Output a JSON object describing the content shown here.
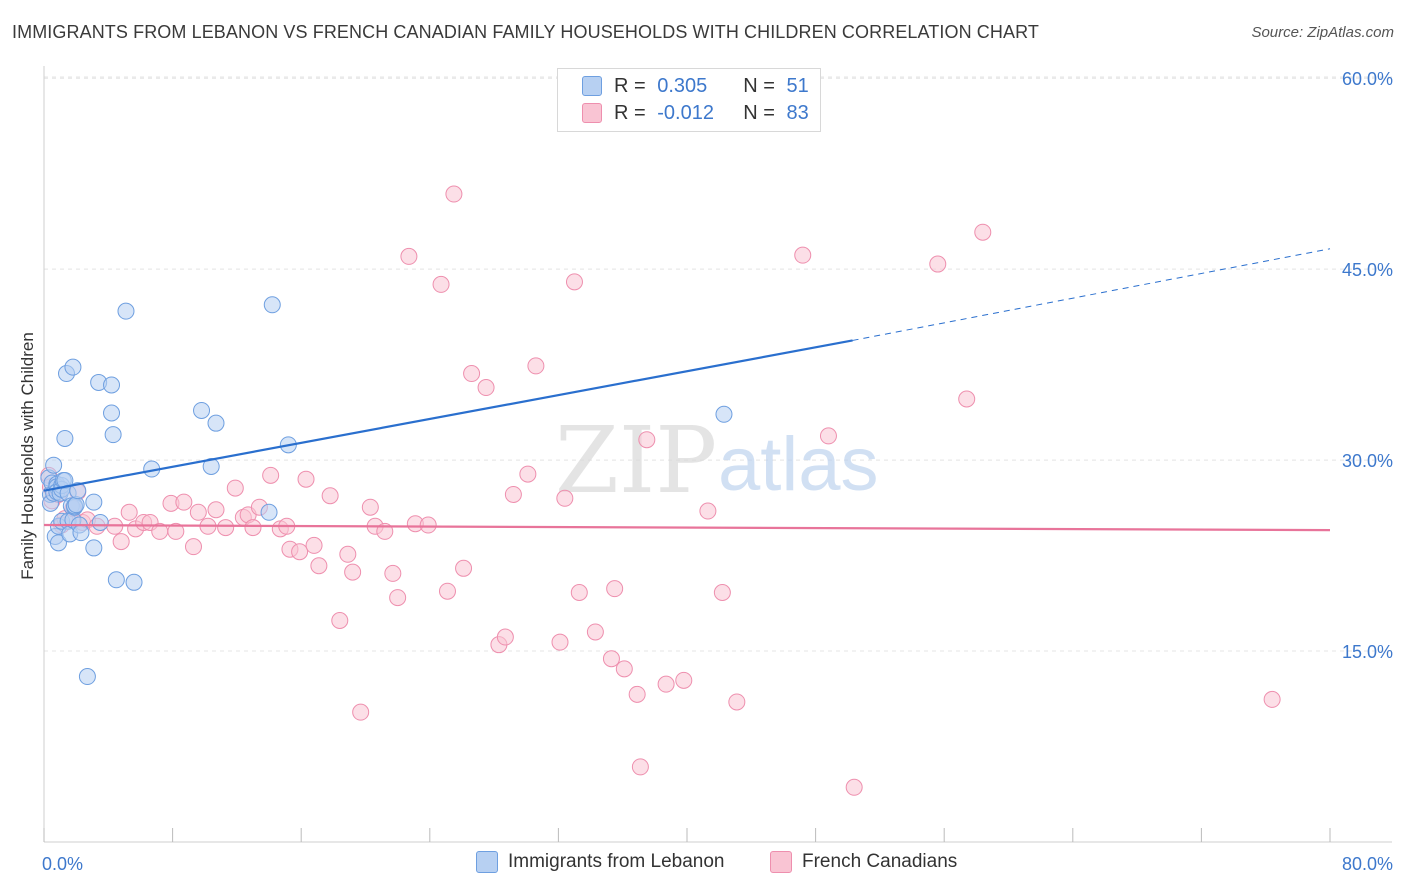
{
  "title": "IMMIGRANTS FROM LEBANON VS FRENCH CANADIAN FAMILY HOUSEHOLDS WITH CHILDREN CORRELATION CHART",
  "source": "Source: ZipAtlas.com",
  "watermark": {
    "zip": "ZIP",
    "atlas": "atlas"
  },
  "legend_top": {
    "rows": [
      {
        "r_label": "R =",
        "r_value": "0.305",
        "n_label": "N =",
        "n_value": "51"
      },
      {
        "r_label": "R =",
        "r_value": "-0.012",
        "n_label": "N =",
        "n_value": "83"
      }
    ]
  },
  "colors": {
    "blue_fill": "#b7d0f2",
    "blue_stroke": "#6e9fe0",
    "blue_line": "#2a6fce",
    "pink_fill": "#f9c4d3",
    "pink_stroke": "#ee8fae",
    "pink_line": "#e8749a",
    "tick_label": "#3d78cc",
    "grid": "#e4e4e4"
  },
  "chart_data": {
    "type": "scatter",
    "title": "IMMIGRANTS FROM LEBANON VS FRENCH CANADIAN FAMILY HOUSEHOLDS WITH CHILDREN CORRELATION CHART",
    "xlabel": "",
    "ylabel": "Family Households with Children",
    "xlim": [
      0,
      80
    ],
    "ylim": [
      0,
      62
    ],
    "x_tick_labels": [
      "0.0%",
      "80.0%"
    ],
    "y_ticks": [
      15,
      30,
      45,
      60
    ],
    "y_tick_labels": [
      "15.0%",
      "30.0%",
      "45.0%",
      "60.0%"
    ],
    "grid": true,
    "legend_position": "bottom",
    "series": [
      {
        "name": "Immigrants from Lebanon",
        "color": "#6e9fe0",
        "trend": {
          "x": [
            0,
            50.3
          ],
          "y": [
            27.6,
            39.4
          ],
          "dashed_to": [
            80,
            46.6
          ]
        },
        "points": [
          [
            0.3,
            28.6
          ],
          [
            0.4,
            27.3
          ],
          [
            0.4,
            26.6
          ],
          [
            0.5,
            28.2
          ],
          [
            0.6,
            27.4
          ],
          [
            0.6,
            29.6
          ],
          [
            0.7,
            24.0
          ],
          [
            0.8,
            28.1
          ],
          [
            0.8,
            27.9
          ],
          [
            0.8,
            27.5
          ],
          [
            0.9,
            23.5
          ],
          [
            0.9,
            24.8
          ],
          [
            1.0,
            27.4
          ],
          [
            1.1,
            28.0
          ],
          [
            1.1,
            27.7
          ],
          [
            1.1,
            25.2
          ],
          [
            1.2,
            28.4
          ],
          [
            1.3,
            31.7
          ],
          [
            1.3,
            28.4
          ],
          [
            1.4,
            36.8
          ],
          [
            1.5,
            25.2
          ],
          [
            1.5,
            27.4
          ],
          [
            1.6,
            24.2
          ],
          [
            1.7,
            26.4
          ],
          [
            1.8,
            37.3
          ],
          [
            1.8,
            25.3
          ],
          [
            1.9,
            26.3
          ],
          [
            1.9,
            26.4
          ],
          [
            2.0,
            26.5
          ],
          [
            2.1,
            27.6
          ],
          [
            2.2,
            24.9
          ],
          [
            2.3,
            24.3
          ],
          [
            2.7,
            13.0
          ],
          [
            3.1,
            23.1
          ],
          [
            3.1,
            26.7
          ],
          [
            3.4,
            36.1
          ],
          [
            3.5,
            25.1
          ],
          [
            4.2,
            35.9
          ],
          [
            4.2,
            33.7
          ],
          [
            4.3,
            32.0
          ],
          [
            4.5,
            20.6
          ],
          [
            5.6,
            20.4
          ],
          [
            5.1,
            41.7
          ],
          [
            6.7,
            29.3
          ],
          [
            9.8,
            33.9
          ],
          [
            10.4,
            29.5
          ],
          [
            10.7,
            32.9
          ],
          [
            14.0,
            25.9
          ],
          [
            14.2,
            42.2
          ],
          [
            15.2,
            31.2
          ],
          [
            42.3,
            33.6
          ]
        ]
      },
      {
        "name": "French Canadians",
        "color": "#ee8fae",
        "trend": {
          "x": [
            0,
            80
          ],
          "y": [
            24.9,
            24.5
          ]
        },
        "points": [
          [
            0.3,
            28.8
          ],
          [
            0.4,
            27.9
          ],
          [
            0.5,
            26.8
          ],
          [
            0.9,
            27.3
          ],
          [
            1.1,
            24.9
          ],
          [
            1.3,
            25.4
          ],
          [
            1.8,
            26.2
          ],
          [
            2.1,
            27.5
          ],
          [
            2.4,
            25.1
          ],
          [
            2.7,
            25.3
          ],
          [
            3.3,
            24.8
          ],
          [
            4.4,
            24.8
          ],
          [
            4.8,
            23.6
          ],
          [
            5.3,
            25.9
          ],
          [
            5.7,
            24.6
          ],
          [
            6.2,
            25.1
          ],
          [
            6.6,
            25.1
          ],
          [
            7.2,
            24.4
          ],
          [
            7.9,
            26.6
          ],
          [
            8.2,
            24.4
          ],
          [
            8.7,
            26.7
          ],
          [
            9.3,
            23.2
          ],
          [
            9.6,
            25.9
          ],
          [
            10.2,
            24.8
          ],
          [
            10.7,
            26.1
          ],
          [
            11.3,
            24.7
          ],
          [
            11.9,
            27.8
          ],
          [
            12.4,
            25.5
          ],
          [
            12.7,
            25.7
          ],
          [
            13.0,
            24.7
          ],
          [
            13.4,
            26.3
          ],
          [
            14.1,
            28.8
          ],
          [
            14.7,
            24.6
          ],
          [
            15.1,
            24.8
          ],
          [
            15.3,
            23.0
          ],
          [
            15.9,
            22.8
          ],
          [
            16.3,
            28.5
          ],
          [
            16.8,
            23.3
          ],
          [
            17.1,
            21.7
          ],
          [
            17.8,
            27.2
          ],
          [
            18.4,
            17.4
          ],
          [
            18.9,
            22.6
          ],
          [
            19.2,
            21.2
          ],
          [
            19.7,
            10.2
          ],
          [
            20.3,
            26.3
          ],
          [
            20.6,
            24.8
          ],
          [
            21.2,
            24.4
          ],
          [
            21.7,
            21.1
          ],
          [
            22.0,
            19.2
          ],
          [
            22.7,
            46.0
          ],
          [
            23.1,
            25.0
          ],
          [
            23.9,
            24.9
          ],
          [
            24.7,
            43.8
          ],
          [
            25.1,
            19.7
          ],
          [
            25.5,
            50.9
          ],
          [
            26.1,
            21.5
          ],
          [
            26.6,
            36.8
          ],
          [
            27.5,
            35.7
          ],
          [
            28.3,
            15.5
          ],
          [
            28.7,
            16.1
          ],
          [
            29.2,
            27.3
          ],
          [
            30.1,
            28.9
          ],
          [
            30.6,
            37.4
          ],
          [
            32.1,
            15.7
          ],
          [
            32.4,
            27.0
          ],
          [
            33.0,
            44.0
          ],
          [
            33.3,
            19.6
          ],
          [
            34.3,
            16.5
          ],
          [
            35.3,
            14.4
          ],
          [
            35.5,
            19.9
          ],
          [
            36.1,
            13.6
          ],
          [
            36.9,
            11.6
          ],
          [
            37.1,
            5.9
          ],
          [
            37.5,
            31.6
          ],
          [
            38.7,
            12.4
          ],
          [
            39.8,
            12.7
          ],
          [
            41.3,
            26.0
          ],
          [
            42.2,
            19.6
          ],
          [
            43.1,
            11.0
          ],
          [
            47.2,
            46.1
          ],
          [
            48.8,
            31.9
          ],
          [
            50.4,
            4.3
          ],
          [
            55.6,
            45.4
          ],
          [
            57.4,
            34.8
          ],
          [
            58.4,
            47.9
          ],
          [
            76.4,
            11.2
          ]
        ]
      }
    ]
  },
  "legend_bottom": {
    "series_1": "Immigrants from Lebanon",
    "series_2": "French Canadians"
  }
}
